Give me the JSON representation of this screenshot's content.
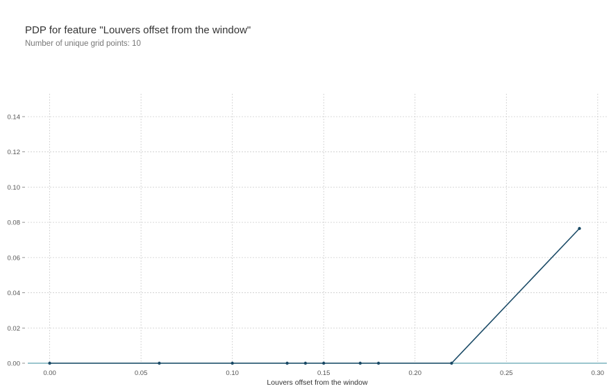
{
  "chart_data": {
    "type": "line",
    "title": "PDP for feature \"Louvers offset from the window\"",
    "subtitle": "Number of unique grid points: 10",
    "xlabel": "Louvers offset from the window",
    "ylabel": "",
    "xlim": [
      -0.012,
      0.305
    ],
    "ylim": [
      0.0,
      0.153
    ],
    "xticks": [
      0.0,
      0.05,
      0.1,
      0.15,
      0.2,
      0.25,
      0.3
    ],
    "xtick_labels": [
      "0.00",
      "0.05",
      "0.10",
      "0.15",
      "0.20",
      "0.25",
      "0.30"
    ],
    "yticks": [
      0.0,
      0.02,
      0.04,
      0.06,
      0.08,
      0.1,
      0.12,
      0.14
    ],
    "ytick_labels": [
      "0.00",
      "0.02",
      "0.04",
      "0.06",
      "0.08",
      "0.10",
      "0.12",
      "0.14"
    ],
    "grid": true,
    "legend": false,
    "series": [
      {
        "x": [
          0.0,
          0.06,
          0.1,
          0.13,
          0.14,
          0.15,
          0.17,
          0.18,
          0.22,
          0.29
        ],
        "y": [
          0.0,
          0.0,
          0.0,
          0.0,
          0.0,
          0.0,
          0.0,
          0.0,
          0.0,
          0.0765
        ],
        "color": "#1a4a66"
      }
    ],
    "baseline": {
      "y": 0.0,
      "color": "#5fa2b0"
    },
    "grid_color": "#cccccc"
  }
}
